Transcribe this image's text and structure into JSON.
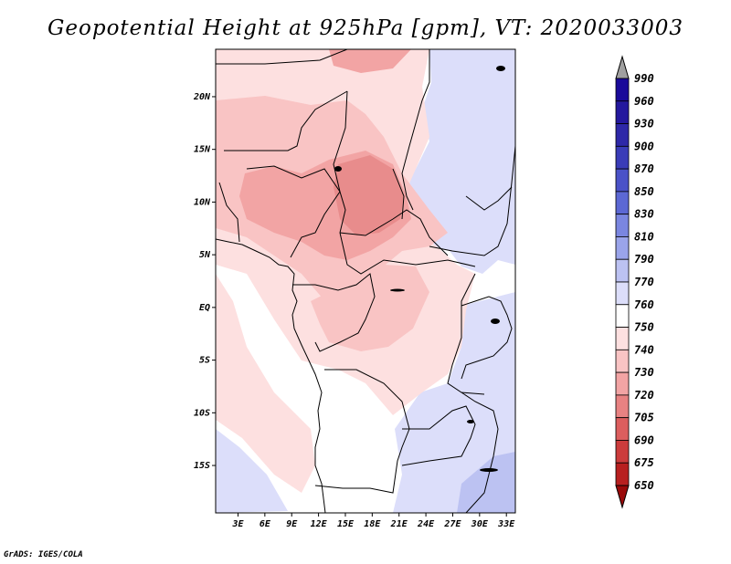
{
  "title": "Geopotential Height at 925hPa [gpm], VT: 2020033003",
  "footer": "GrADS: IGES/COLA",
  "map": {
    "lat_labels": [
      "20N",
      "15N",
      "10N",
      "5N",
      "EQ",
      "5S",
      "10S",
      "15S"
    ],
    "lat_values": [
      20,
      15,
      10,
      5,
      0,
      -5,
      -10,
      -15
    ],
    "lon_labels": [
      "3E",
      "6E",
      "9E",
      "12E",
      "15E",
      "18E",
      "21E",
      "24E",
      "27E",
      "30E",
      "33E"
    ],
    "lon_values": [
      3,
      6,
      9,
      12,
      15,
      18,
      21,
      24,
      27,
      30,
      33
    ],
    "lat_range": [
      -19.5,
      24.5
    ],
    "lon_range": [
      0.5,
      34
    ]
  },
  "colorbar": {
    "levels": [
      "990",
      "960",
      "930",
      "900",
      "870",
      "850",
      "830",
      "810",
      "790",
      "770",
      "760",
      "750",
      "740",
      "730",
      "720",
      "705",
      "690",
      "675",
      "650"
    ],
    "colors": [
      "#1a0a9a",
      "#24189e",
      "#2e28a8",
      "#3a3cb8",
      "#4a52c8",
      "#5c68d4",
      "#7a86e0",
      "#9aa4ea",
      "#bcc2f2",
      "#dcdefa",
      "#ffffff",
      "#fde0e0",
      "#f9c4c4",
      "#f2a4a4",
      "#e88282",
      "#dc5e5e",
      "#cc3c3c",
      "#b82020",
      "#9a0a0a"
    ]
  },
  "field_colors": {
    "white": "#ffffff",
    "light_pink": "#fde0e0",
    "pink": "#f9c4c4",
    "mid_pink": "#f2a4a4",
    "dark_pink": "#e88c8c",
    "light_blue": "#dcdefa",
    "blue": "#bcc2f2"
  }
}
